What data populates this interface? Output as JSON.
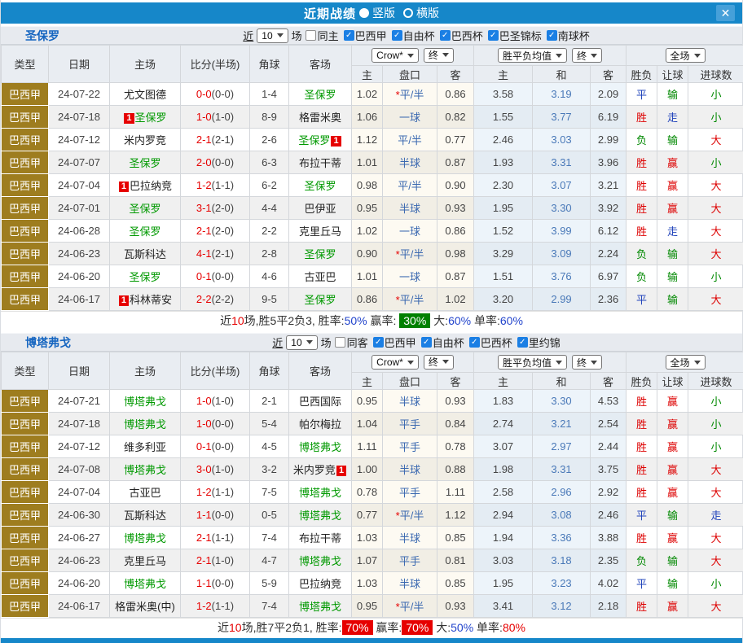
{
  "titlebar": {
    "title": "近期战绩",
    "radios": [
      {
        "label": "竖版",
        "selected": true
      },
      {
        "label": "横版",
        "selected": false
      }
    ],
    "close_label": "✕"
  },
  "icons": {
    "check": "✓"
  },
  "table_header": {
    "left_cols": [
      "类型",
      "日期",
      "主场",
      "比分(半场)",
      "角球",
      "客场"
    ],
    "crow_select": "Crow*",
    "final_select": "终",
    "avg_select": "胜平负均值",
    "scope_select": "全场",
    "sub_cols": [
      "主",
      "盘口",
      "客",
      "主",
      "和",
      "客",
      "胜负",
      "让球",
      "进球数"
    ]
  },
  "value_colors": {
    "胜": "#dd0000",
    "负": "#008800",
    "平": "#2244bb",
    "赢": "#dd0000",
    "输": "#008800",
    "走": "#2244bb",
    "大": "#dd0000",
    "小": "#008800"
  },
  "sections": [
    {
      "team": "圣保罗",
      "filter": {
        "near_label": "近",
        "count": "10",
        "games_label": "场",
        "same_label": "同主",
        "same_checked": false,
        "leagues": [
          {
            "label": "巴西甲",
            "checked": true
          },
          {
            "label": "自由杯",
            "checked": true
          },
          {
            "label": "巴西杯",
            "checked": true
          },
          {
            "label": "巴圣锦标",
            "checked": true
          },
          {
            "label": "南球杯",
            "checked": true
          }
        ]
      },
      "rows": [
        {
          "league": "巴西甲",
          "date": "24-07-22",
          "home": "尤文图德",
          "away": "圣保罗",
          "hl": "away",
          "badge": null,
          "badge_text": "",
          "score": "0-0",
          "half": "(0-0)",
          "corner": "1-4",
          "crow": [
            "1.02",
            "*平/半",
            "0.86"
          ],
          "avg": [
            "3.58",
            "3.19",
            "2.09"
          ],
          "res": [
            "平",
            "输",
            "小"
          ]
        },
        {
          "league": "巴西甲",
          "date": "24-07-18",
          "home": "圣保罗",
          "away": "格雷米奥",
          "hl": "home",
          "badge": "home",
          "badge_text": "1",
          "score": "1-0",
          "half": "(1-0)",
          "corner": "8-9",
          "crow": [
            "1.06",
            "一球",
            "0.82"
          ],
          "avg": [
            "1.55",
            "3.77",
            "6.19"
          ],
          "res": [
            "胜",
            "走",
            "小"
          ]
        },
        {
          "league": "巴西甲",
          "date": "24-07-12",
          "home": "米内罗竞",
          "away": "圣保罗",
          "hl": "away",
          "badge": "away",
          "badge_text": "1",
          "score": "2-1",
          "half": "(2-1)",
          "corner": "2-6",
          "crow": [
            "1.12",
            "平/半",
            "0.77"
          ],
          "avg": [
            "2.46",
            "3.03",
            "2.99"
          ],
          "res": [
            "负",
            "输",
            "大"
          ]
        },
        {
          "league": "巴西甲",
          "date": "24-07-07",
          "home": "圣保罗",
          "away": "布拉干蒂",
          "hl": "home",
          "badge": null,
          "badge_text": "",
          "score": "2-0",
          "half": "(0-0)",
          "corner": "6-3",
          "crow": [
            "1.01",
            "半球",
            "0.87"
          ],
          "avg": [
            "1.93",
            "3.31",
            "3.96"
          ],
          "res": [
            "胜",
            "赢",
            "小"
          ]
        },
        {
          "league": "巴西甲",
          "date": "24-07-04",
          "home": "巴拉纳竞",
          "away": "圣保罗",
          "hl": "away",
          "badge": "home",
          "badge_text": "1",
          "score": "1-2",
          "half": "(1-1)",
          "corner": "6-2",
          "crow": [
            "0.98",
            "平/半",
            "0.90"
          ],
          "avg": [
            "2.30",
            "3.07",
            "3.21"
          ],
          "res": [
            "胜",
            "赢",
            "大"
          ]
        },
        {
          "league": "巴西甲",
          "date": "24-07-01",
          "home": "圣保罗",
          "away": "巴伊亚",
          "hl": "home",
          "badge": null,
          "badge_text": "",
          "score": "3-1",
          "half": "(2-0)",
          "corner": "4-4",
          "crow": [
            "0.95",
            "半球",
            "0.93"
          ],
          "avg": [
            "1.95",
            "3.30",
            "3.92"
          ],
          "res": [
            "胜",
            "赢",
            "大"
          ]
        },
        {
          "league": "巴西甲",
          "date": "24-06-28",
          "home": "圣保罗",
          "away": "克里丘马",
          "hl": "home",
          "badge": null,
          "badge_text": "",
          "score": "2-1",
          "half": "(2-0)",
          "corner": "2-2",
          "crow": [
            "1.02",
            "一球",
            "0.86"
          ],
          "avg": [
            "1.52",
            "3.99",
            "6.12"
          ],
          "res": [
            "胜",
            "走",
            "大"
          ]
        },
        {
          "league": "巴西甲",
          "date": "24-06-23",
          "home": "瓦斯科达",
          "away": "圣保罗",
          "hl": "away",
          "badge": null,
          "badge_text": "",
          "score": "4-1",
          "half": "(2-1)",
          "corner": "2-8",
          "crow": [
            "0.90",
            "*平/半",
            "0.98"
          ],
          "avg": [
            "3.29",
            "3.09",
            "2.24"
          ],
          "res": [
            "负",
            "输",
            "大"
          ]
        },
        {
          "league": "巴西甲",
          "date": "24-06-20",
          "home": "圣保罗",
          "away": "古亚巴",
          "hl": "home",
          "badge": null,
          "badge_text": "",
          "score": "0-1",
          "half": "(0-0)",
          "corner": "4-6",
          "crow": [
            "1.01",
            "一球",
            "0.87"
          ],
          "avg": [
            "1.51",
            "3.76",
            "6.97"
          ],
          "res": [
            "负",
            "输",
            "小"
          ]
        },
        {
          "league": "巴西甲",
          "date": "24-06-17",
          "home": "科林蒂安",
          "away": "圣保罗",
          "hl": "away",
          "badge": "home",
          "badge_text": "1",
          "score": "2-2",
          "half": "(2-2)",
          "corner": "9-5",
          "crow": [
            "0.86",
            "*平/半",
            "1.02"
          ],
          "avg": [
            "3.20",
            "2.99",
            "2.36"
          ],
          "res": [
            "平",
            "输",
            "大"
          ]
        }
      ],
      "summary": [
        {
          "text": "近",
          "style": "plain"
        },
        {
          "text": "10",
          "style": "red"
        },
        {
          "text": "场,胜5平2负3, 胜率:",
          "style": "plain"
        },
        {
          "text": "50%",
          "style": "blue"
        },
        {
          "text": " 赢率: ",
          "style": "plain"
        },
        {
          "text": "30%",
          "style": "green-badge"
        },
        {
          "text": " 大:",
          "style": "plain"
        },
        {
          "text": "60%",
          "style": "blue"
        },
        {
          "text": " 单率:",
          "style": "plain"
        },
        {
          "text": "60%",
          "style": "blue"
        }
      ]
    },
    {
      "team": "博塔弗戈",
      "filter": {
        "near_label": "近",
        "count": "10",
        "games_label": "场",
        "same_label": "同客",
        "same_checked": false,
        "leagues": [
          {
            "label": "巴西甲",
            "checked": true
          },
          {
            "label": "自由杯",
            "checked": true
          },
          {
            "label": "巴西杯",
            "checked": true
          },
          {
            "label": "里约锦",
            "checked": true
          }
        ]
      },
      "rows": [
        {
          "league": "巴西甲",
          "date": "24-07-21",
          "home": "博塔弗戈",
          "away": "巴西国际",
          "hl": "home",
          "badge": null,
          "badge_text": "",
          "score": "1-0",
          "half": "(1-0)",
          "corner": "2-1",
          "crow": [
            "0.95",
            "半球",
            "0.93"
          ],
          "avg": [
            "1.83",
            "3.30",
            "4.53"
          ],
          "res": [
            "胜",
            "赢",
            "小"
          ]
        },
        {
          "league": "巴西甲",
          "date": "24-07-18",
          "home": "博塔弗戈",
          "away": "帕尔梅拉",
          "hl": "home",
          "badge": null,
          "badge_text": "",
          "score": "1-0",
          "half": "(0-0)",
          "corner": "5-4",
          "crow": [
            "1.04",
            "平手",
            "0.84"
          ],
          "avg": [
            "2.74",
            "3.21",
            "2.54"
          ],
          "res": [
            "胜",
            "赢",
            "小"
          ]
        },
        {
          "league": "巴西甲",
          "date": "24-07-12",
          "home": "维多利亚",
          "away": "博塔弗戈",
          "hl": "away",
          "badge": null,
          "badge_text": "",
          "score": "0-1",
          "half": "(0-0)",
          "corner": "4-5",
          "crow": [
            "1.11",
            "平手",
            "0.78"
          ],
          "avg": [
            "3.07",
            "2.97",
            "2.44"
          ],
          "res": [
            "胜",
            "赢",
            "小"
          ]
        },
        {
          "league": "巴西甲",
          "date": "24-07-08",
          "home": "博塔弗戈",
          "away": "米内罗竞",
          "hl": "home",
          "badge": "away",
          "badge_text": "1",
          "score": "3-0",
          "half": "(1-0)",
          "corner": "3-2",
          "crow": [
            "1.00",
            "半球",
            "0.88"
          ],
          "avg": [
            "1.98",
            "3.31",
            "3.75"
          ],
          "res": [
            "胜",
            "赢",
            "大"
          ]
        },
        {
          "league": "巴西甲",
          "date": "24-07-04",
          "home": "古亚巴",
          "away": "博塔弗戈",
          "hl": "away",
          "badge": null,
          "badge_text": "",
          "score": "1-2",
          "half": "(1-1)",
          "corner": "7-5",
          "crow": [
            "0.78",
            "平手",
            "1.11"
          ],
          "avg": [
            "2.58",
            "2.96",
            "2.92"
          ],
          "res": [
            "胜",
            "赢",
            "大"
          ]
        },
        {
          "league": "巴西甲",
          "date": "24-06-30",
          "home": "瓦斯科达",
          "away": "博塔弗戈",
          "hl": "away",
          "badge": null,
          "badge_text": "",
          "score": "1-1",
          "half": "(0-0)",
          "corner": "0-5",
          "crow": [
            "0.77",
            "*平/半",
            "1.12"
          ],
          "avg": [
            "2.94",
            "3.08",
            "2.46"
          ],
          "res": [
            "平",
            "输",
            "走"
          ]
        },
        {
          "league": "巴西甲",
          "date": "24-06-27",
          "home": "博塔弗戈",
          "away": "布拉干蒂",
          "hl": "home",
          "badge": null,
          "badge_text": "",
          "score": "2-1",
          "half": "(1-1)",
          "corner": "7-4",
          "crow": [
            "1.03",
            "半球",
            "0.85"
          ],
          "avg": [
            "1.94",
            "3.36",
            "3.88"
          ],
          "res": [
            "胜",
            "赢",
            "大"
          ]
        },
        {
          "league": "巴西甲",
          "date": "24-06-23",
          "home": "克里丘马",
          "away": "博塔弗戈",
          "hl": "away",
          "badge": null,
          "badge_text": "",
          "score": "2-1",
          "half": "(1-0)",
          "corner": "4-7",
          "crow": [
            "1.07",
            "平手",
            "0.81"
          ],
          "avg": [
            "3.03",
            "3.18",
            "2.35"
          ],
          "res": [
            "负",
            "输",
            "大"
          ]
        },
        {
          "league": "巴西甲",
          "date": "24-06-20",
          "home": "博塔弗戈",
          "away": "巴拉纳竞",
          "hl": "home",
          "badge": null,
          "badge_text": "",
          "score": "1-1",
          "half": "(0-0)",
          "corner": "5-9",
          "crow": [
            "1.03",
            "半球",
            "0.85"
          ],
          "avg": [
            "1.95",
            "3.23",
            "4.02"
          ],
          "res": [
            "平",
            "输",
            "小"
          ]
        },
        {
          "league": "巴西甲",
          "date": "24-06-17",
          "home": "格雷米奥(中)",
          "away": "博塔弗戈",
          "hl": "away",
          "badge": null,
          "badge_text": "",
          "score": "1-2",
          "half": "(1-1)",
          "corner": "7-4",
          "crow": [
            "0.95",
            "*平/半",
            "0.93"
          ],
          "avg": [
            "3.41",
            "3.12",
            "2.18"
          ],
          "res": [
            "胜",
            "赢",
            "大"
          ]
        }
      ],
      "summary": [
        {
          "text": "近",
          "style": "plain"
        },
        {
          "text": "10",
          "style": "red"
        },
        {
          "text": "场,胜7平2负1, 胜率:",
          "style": "plain"
        },
        {
          "text": "70%",
          "style": "red-badge"
        },
        {
          "text": " 赢率:",
          "style": "plain"
        },
        {
          "text": "70%",
          "style": "red-badge"
        },
        {
          "text": " 大:",
          "style": "plain"
        },
        {
          "text": "50%",
          "style": "blue"
        },
        {
          "text": " 单率:",
          "style": "plain"
        },
        {
          "text": "80%",
          "style": "red"
        }
      ]
    }
  ],
  "colors": {
    "titlebar_blue": "#1687c9",
    "league_cell_gold": "#9e7d1f",
    "team_highlight_green": "#009900",
    "score_red": "#e60000",
    "handicap_blue": "#3a68b0",
    "draw_avg_blue": "#4a79b8",
    "summary_green_badge": "#008000",
    "summary_red_badge": "#e60000"
  }
}
